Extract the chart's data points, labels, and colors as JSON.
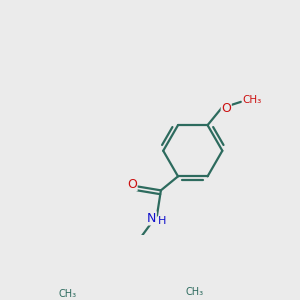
{
  "bg_color": "#ebebeb",
  "bond_color": "#2d6b5e",
  "nitrogen_color": "#1010cc",
  "oxygen_color": "#cc1010",
  "lw": 1.6,
  "figsize": [
    3.0,
    3.0
  ],
  "dpi": 100,
  "xlim": [
    0,
    300
  ],
  "ylim": [
    0,
    300
  ]
}
